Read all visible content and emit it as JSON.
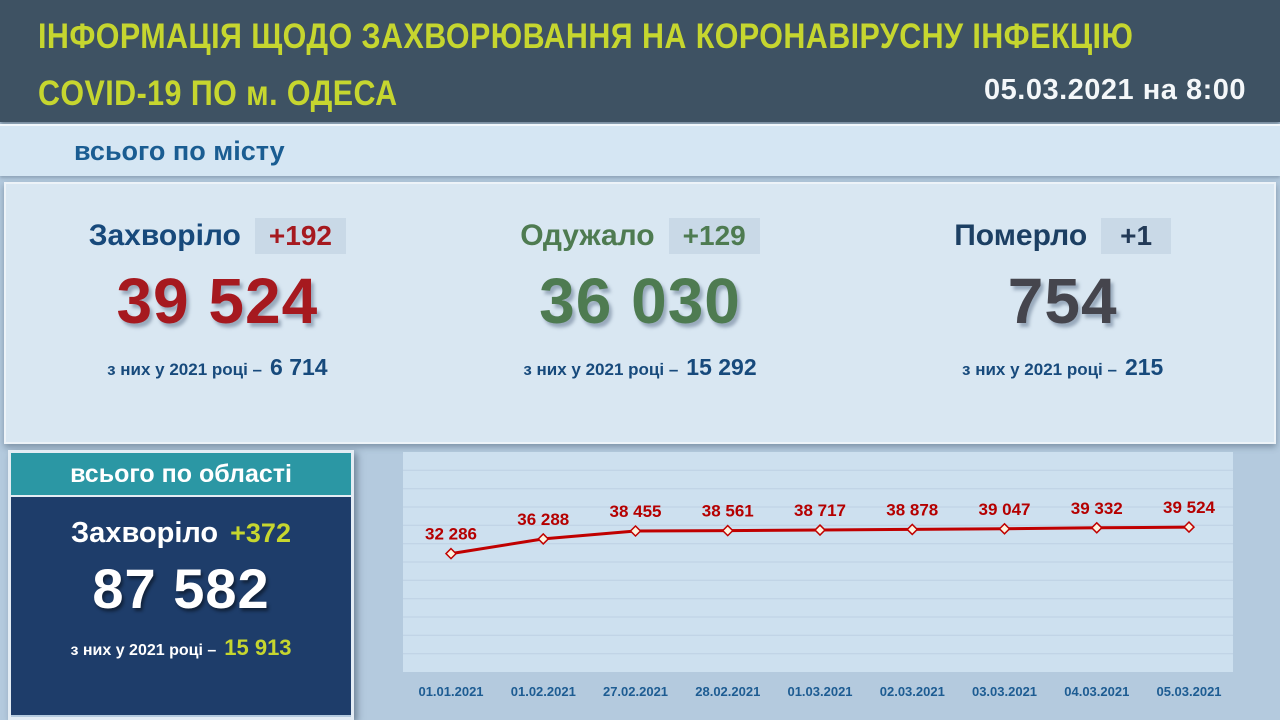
{
  "header": {
    "title_line1": "ІНФОРМАЦІЯ ЩОДО ЗАХВОРЮВАННЯ НА КОРОНАВІРУСНУ ІНФЕКЦІЮ",
    "title_line2": "COVID-19 ПО м. ОДЕСА",
    "date": "05.03.2021 на 8:00"
  },
  "city_section": {
    "title": "всього по місту",
    "stats": [
      {
        "id": "sick",
        "label": "Захворіло",
        "delta": "+192",
        "value": "39 524",
        "sub_label": "з них у 2021 році –",
        "sub_value": "6 714",
        "label_color": "#17497b",
        "delta_color": "#a6191f",
        "value_color": "#a6191f"
      },
      {
        "id": "recovered",
        "label": "Одужало",
        "delta": "+129",
        "value": "36 030",
        "sub_label": "з них у 2021 році –",
        "sub_value": "15 292",
        "label_color": "#4e7b51",
        "delta_color": "#4e7b51",
        "value_color": "#4e7b51"
      },
      {
        "id": "dead",
        "label": "Померло",
        "delta": "+1",
        "value": "754",
        "sub_label": "з них у 2021 році –",
        "sub_value": "215",
        "label_color": "#1c3f63",
        "delta_color": "#233a57",
        "value_color": "#45454d"
      }
    ]
  },
  "region_section": {
    "title": "всього по області",
    "label": "Захворіло",
    "delta": "+372",
    "value": "87 582",
    "sub_label": "з них у 2021 році –",
    "sub_value": "15 913",
    "header_color": "#2b97a4",
    "body_color": "#1e3d6a",
    "accent_color": "#c6d62f"
  },
  "chart_data": {
    "type": "line",
    "title": "",
    "xlabel": "",
    "ylabel": "",
    "x": [
      "01.01.2021",
      "01.02.2021",
      "27.02.2021",
      "28.02.2021",
      "01.03.2021",
      "02.03.2021",
      "03.03.2021",
      "04.03.2021",
      "05.03.2021"
    ],
    "values": [
      32286,
      36288,
      38455,
      38561,
      38717,
      38878,
      39047,
      39332,
      39524
    ],
    "point_labels": [
      "32 286",
      "36 288",
      "38 455",
      "38 561",
      "38 717",
      "38 878",
      "39 047",
      "39 332",
      "39 524"
    ],
    "ylim": [
      0,
      60000
    ],
    "grid": true,
    "grid_step": 5000,
    "legend": false,
    "line_color": "#c00000",
    "marker_fill": "#fdf3df",
    "label_color": "#b50000",
    "axis_label_color": "#1d5c92",
    "grid_color": "#bdd0e3",
    "background_color": "#cde0ef"
  }
}
